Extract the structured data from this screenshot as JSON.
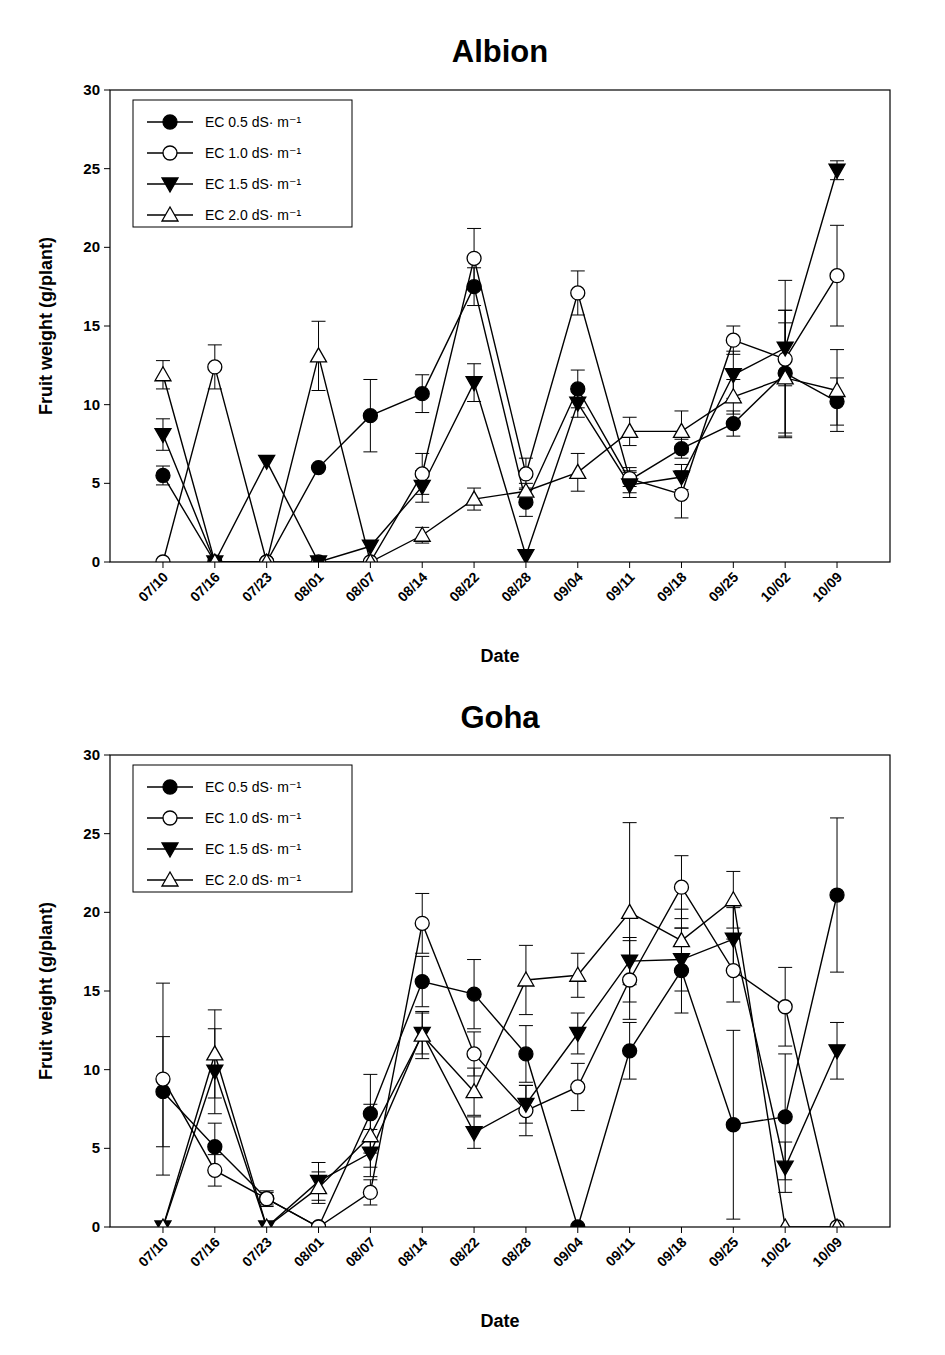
{
  "chart_data": [
    {
      "type": "line",
      "title": "Albion",
      "x_label": "Date",
      "y_label": "Fruit weight (g/plant)",
      "categories": [
        "07/10",
        "07/16",
        "07/23",
        "08/01",
        "08/07",
        "08/14",
        "08/22",
        "08/28",
        "09/04",
        "09/11",
        "09/18",
        "09/25",
        "10/02",
        "10/09"
      ],
      "ylim": [
        0,
        30
      ],
      "yticks": [
        0,
        5,
        10,
        15,
        20,
        25,
        30
      ],
      "grid": false,
      "legend": "upper-left",
      "series": [
        {
          "name": "EC 0.5 dS· m⁻¹",
          "color": "#000000",
          "marker": "filled-circle",
          "line_style": "solid",
          "values": [
            5.5,
            0,
            0,
            6,
            9.3,
            10.7,
            17.5,
            3.8,
            11,
            5.2,
            7.2,
            8.8,
            12,
            10.2
          ],
          "errors": [
            0.6,
            0,
            0,
            0,
            2.3,
            1.2,
            1.2,
            0.9,
            1.2,
            0.8,
            0.6,
            0.8,
            4,
            1.5
          ]
        },
        {
          "name": "EC 1.0 dS· m⁻¹",
          "color": "#000000",
          "marker": "open-circle",
          "line_style": "solid",
          "values": [
            0,
            12.4,
            0,
            0,
            0,
            5.6,
            19.3,
            5.6,
            17.1,
            5.3,
            4.3,
            14.1,
            12.9,
            18.2
          ],
          "errors": [
            0,
            1.4,
            0,
            0,
            0,
            1.3,
            1.9,
            1,
            1.4,
            0.5,
            1.5,
            0.9,
            5,
            3.2
          ]
        },
        {
          "name": "EC 1.5 dS· m⁻¹",
          "color": "#000000",
          "marker": "filled-triangle-down",
          "line_style": "solid",
          "values": [
            8.1,
            0,
            6.4,
            0,
            1,
            4.8,
            11.4,
            0.4,
            10.1,
            4.9,
            5.4,
            11.9,
            13.6,
            24.9
          ],
          "errors": [
            1,
            0,
            0,
            0,
            0,
            1,
            1.2,
            0,
            0.9,
            0.8,
            0.8,
            1.5,
            2.4,
            0.6
          ]
        },
        {
          "name": "EC 2.0 dS· m⁻¹",
          "color": "#000000",
          "marker": "open-triangle",
          "line_style": "solid",
          "values": [
            11.9,
            0,
            0,
            13.1,
            0,
            1.7,
            4,
            4.5,
            5.7,
            8.3,
            8.3,
            10.5,
            11.7,
            10.9
          ],
          "errors": [
            0.9,
            0,
            0,
            2.2,
            0,
            0.5,
            0.7,
            0.5,
            1.2,
            0.9,
            1.3,
            1.1,
            3.5,
            2.6
          ]
        }
      ]
    },
    {
      "type": "line",
      "title": "Goha",
      "x_label": "Date",
      "y_label": "Fruit weight (g/plant)",
      "categories": [
        "07/10",
        "07/16",
        "07/23",
        "08/01",
        "08/07",
        "08/14",
        "08/22",
        "08/28",
        "09/04",
        "09/11",
        "09/18",
        "09/25",
        "10/02",
        "10/09"
      ],
      "ylim": [
        0,
        30
      ],
      "yticks": [
        0,
        5,
        10,
        15,
        20,
        25,
        30
      ],
      "grid": false,
      "legend": "upper-left",
      "series": [
        {
          "name": "EC 0.5 dS· m⁻¹",
          "color": "#000000",
          "marker": "filled-circle",
          "line_style": "solid",
          "values": [
            8.6,
            5.1,
            1.8,
            0,
            7.2,
            15.6,
            14.8,
            11,
            0,
            11.2,
            16.3,
            6.5,
            7,
            21.1
          ],
          "errors": [
            3.5,
            1.5,
            0.5,
            0,
            2.5,
            1.6,
            2.2,
            1.8,
            0,
            1.8,
            2.7,
            6,
            4,
            4.9
          ]
        },
        {
          "name": "EC 1.0 dS· m⁻¹",
          "color": "#000000",
          "marker": "open-circle",
          "line_style": "solid",
          "values": [
            9.4,
            3.6,
            1.8,
            0,
            2.2,
            19.3,
            11,
            7.4,
            8.9,
            15.7,
            21.6,
            16.3,
            14,
            0
          ],
          "errors": [
            6.1,
            1,
            0.4,
            0,
            0.8,
            1.9,
            1.4,
            1.6,
            1.5,
            2.5,
            2,
            2,
            2.5,
            0
          ]
        },
        {
          "name": "EC 1.5 dS· m⁻¹",
          "color": "#000000",
          "marker": "filled-triangle-down",
          "line_style": "solid",
          "values": [
            0,
            9.9,
            0,
            2.9,
            4.7,
            12.3,
            6,
            7.8,
            12.3,
            16.9,
            17,
            18.3,
            3.8,
            11.2
          ],
          "errors": [
            0,
            2.7,
            0,
            1.2,
            1.5,
            1.3,
            1,
            1.2,
            1.3,
            1.5,
            2,
            2,
            1.6,
            1.8
          ]
        },
        {
          "name": "EC 2.0 dS· m⁻¹",
          "color": "#000000",
          "marker": "open-triangle",
          "line_style": "solid",
          "values": [
            0,
            11,
            0,
            2.5,
            5.8,
            12.2,
            8.6,
            15.7,
            16,
            20,
            18.2,
            20.8,
            0,
            0
          ],
          "errors": [
            0,
            2.8,
            0,
            1,
            2,
            1.5,
            1.5,
            2.2,
            1.4,
            5.7,
            2,
            1.8,
            0,
            0
          ]
        }
      ]
    }
  ]
}
